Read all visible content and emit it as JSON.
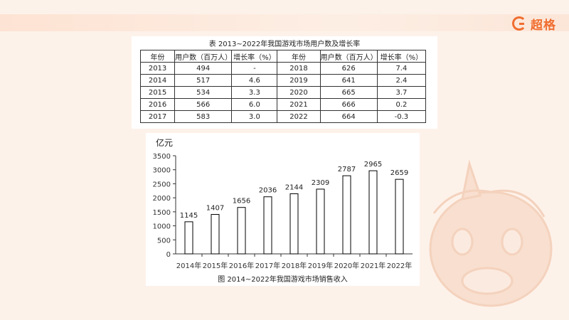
{
  "brand": {
    "name": "超格",
    "accent": "#f06d2f"
  },
  "table": {
    "title": "表  2013~2022年我国游戏市场用户数及增长率",
    "headers": [
      "年份",
      "用户数（百万人）",
      "增长率（%）",
      "年份",
      "用户数（百万人）",
      "增长率（%）"
    ],
    "rows": [
      [
        "2013",
        "494",
        "-",
        "2018",
        "626",
        "7.4"
      ],
      [
        "2014",
        "517",
        "4.6",
        "2019",
        "641",
        "2.4"
      ],
      [
        "2015",
        "534",
        "3.3",
        "2020",
        "665",
        "3.7"
      ],
      [
        "2016",
        "566",
        "6.0",
        "2021",
        "666",
        "0.2"
      ],
      [
        "2017",
        "583",
        "3.0",
        "2022",
        "664",
        "-0.3"
      ]
    ]
  },
  "chart_data": [
    {
      "type": "table",
      "title": "表  2013~2022年我国游戏市场用户数及增长率",
      "columns": [
        "年份",
        "用户数（百万人）",
        "增长率（%）"
      ],
      "rows": [
        [
          "2013",
          494,
          null
        ],
        [
          "2014",
          517,
          4.6
        ],
        [
          "2015",
          534,
          3.3
        ],
        [
          "2016",
          566,
          6.0
        ],
        [
          "2017",
          583,
          3.0
        ],
        [
          "2018",
          626,
          7.4
        ],
        [
          "2019",
          641,
          2.4
        ],
        [
          "2020",
          665,
          3.7
        ],
        [
          "2021",
          666,
          0.2
        ],
        [
          "2022",
          664,
          -0.3
        ]
      ]
    },
    {
      "type": "bar",
      "title": "图  2014~2022年我国游戏市场销售收入",
      "ylabel": "亿元",
      "xlabel": "",
      "categories": [
        "2014年",
        "2015年",
        "2016年",
        "2017年",
        "2018年",
        "2019年",
        "2020年",
        "2021年",
        "2022年"
      ],
      "values": [
        1145,
        1407,
        1656,
        2036,
        2144,
        2309,
        2787,
        2965,
        2659
      ],
      "ylim": [
        0,
        3500
      ],
      "yticks": [
        0,
        500,
        1000,
        1500,
        2000,
        2500,
        3000,
        3500
      ],
      "grid": false,
      "bar_color": "#ffffff",
      "bar_edge": "#000000"
    }
  ]
}
